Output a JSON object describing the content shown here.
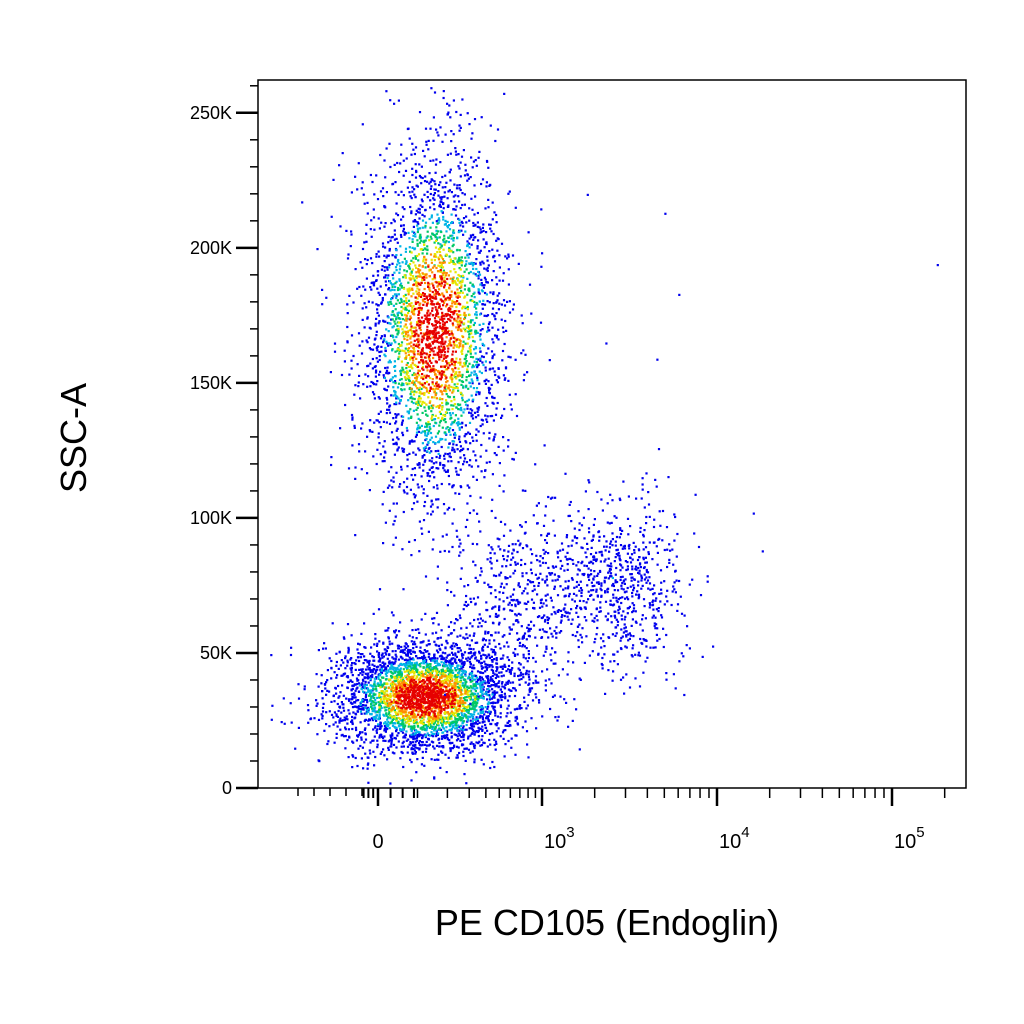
{
  "chart_data": {
    "type": "scatter",
    "title": "",
    "xlabel": "PE CD105 (Endoglin)",
    "ylabel": "SSC-A",
    "x_scale": "biexponential",
    "x_ticks": [
      {
        "value": 0,
        "base": "0",
        "exp": ""
      },
      {
        "value": 1000,
        "base": "10",
        "exp": "3"
      },
      {
        "value": 10000,
        "base": "10",
        "exp": "4"
      },
      {
        "value": 100000,
        "base": "10",
        "exp": "5"
      }
    ],
    "y_ticks": [
      {
        "value": 0,
        "label": "0"
      },
      {
        "value": 50000,
        "label": "50K"
      },
      {
        "value": 100000,
        "label": "100K"
      },
      {
        "value": 150000,
        "label": "150K"
      },
      {
        "value": 200000,
        "label": "200K"
      },
      {
        "value": 250000,
        "label": "250K"
      }
    ],
    "ylim": [
      0,
      262144
    ],
    "xlim": [
      -600,
      262144
    ],
    "grid": false,
    "legend": "none",
    "color_scale": "density (blue → cyan → green → yellow → red)",
    "colors": [
      "#0000ee",
      "#00b4e6",
      "#00c864",
      "#e6e600",
      "#ff8c00",
      "#e60000"
    ],
    "populations": [
      {
        "x_center": 150,
        "y_center": 170000,
        "x_spread": 150,
        "y_spread": 32000,
        "count": 3200,
        "peak": 1.0
      },
      {
        "x_center": 120,
        "y_center": 34000,
        "x_spread": 180,
        "y_spread": 10000,
        "count": 3600,
        "peak": 1.0
      },
      {
        "x_center": 2600,
        "y_center": 76000,
        "x_spread": 1500,
        "y_spread": 16000,
        "count": 700,
        "peak": 0.2
      },
      {
        "x_center": 700,
        "y_center": 68000,
        "x_spread": 450,
        "y_spread": 16000,
        "count": 450,
        "peak": 0.12
      }
    ],
    "outliers": [
      {
        "x": 180000,
        "y": 194000
      },
      {
        "x": 5000,
        "y": 213000
      },
      {
        "x": 1800,
        "y": 220000
      },
      {
        "x": 6000,
        "y": 183000
      },
      {
        "x": 2300,
        "y": 165000
      },
      {
        "x": 4500,
        "y": 159000
      },
      {
        "x": 16000,
        "y": 102000
      },
      {
        "x": 18000,
        "y": 88000
      },
      {
        "x": -350,
        "y": 52000
      },
      {
        "x": -250,
        "y": 231000
      },
      {
        "x": -300,
        "y": 120000
      }
    ]
  }
}
